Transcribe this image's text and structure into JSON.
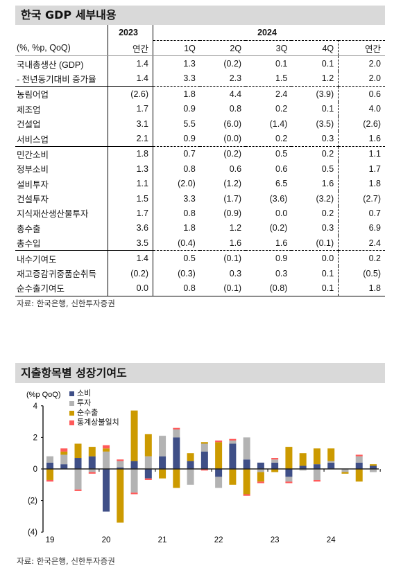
{
  "table_section": {
    "title": "한국 GDP 세부내용",
    "header": {
      "year_2023": "2023",
      "year_2024": "2024"
    },
    "units_row": [
      "(%, %p, QoQ)",
      "연간",
      "1Q",
      "2Q",
      "3Q",
      "4Q",
      "연간"
    ],
    "rows": [
      [
        "국내총생산 (GDP)",
        "1.4",
        "1.3",
        "(0.2)",
        "0.1",
        "0.1",
        "2.0"
      ],
      [
        "- 전년동기대비 증가율",
        "1.4",
        "3.3",
        "2.3",
        "1.5",
        "1.2",
        "2.0"
      ],
      [
        "농림어업",
        "(2.6)",
        "1.8",
        "4.4",
        "2.4",
        "(3.9)",
        "0.6"
      ],
      [
        "제조업",
        "1.7",
        "0.9",
        "0.8",
        "0.2",
        "0.1",
        "4.0"
      ],
      [
        "건설업",
        "3.1",
        "5.5",
        "(6.0)",
        "(1.4)",
        "(3.5)",
        "(2.6)"
      ],
      [
        "서비스업",
        "2.1",
        "0.9",
        "(0.0)",
        "0.2",
        "0.3",
        "1.6"
      ],
      [
        "민간소비",
        "1.8",
        "0.7",
        "(0.2)",
        "0.5",
        "0.2",
        "1.1"
      ],
      [
        "정부소비",
        "1.3",
        "0.8",
        "0.6",
        "0.6",
        "0.5",
        "1.7"
      ],
      [
        "설비투자",
        "1.1",
        "(2.0)",
        "(1.2)",
        "6.5",
        "1.6",
        "1.8"
      ],
      [
        "건설투자",
        "1.5",
        "3.3",
        "(1.7)",
        "(3.6)",
        "(3.2)",
        "(2.7)"
      ],
      [
        "지식재산생산물투자",
        "1.7",
        "0.8",
        "(0.9)",
        "0.0",
        "0.2",
        "0.7"
      ],
      [
        "총수출",
        "3.6",
        "1.8",
        "1.2",
        "(0.2)",
        "0.3",
        "6.9"
      ],
      [
        "총수입",
        "3.5",
        "(0.4)",
        "1.6",
        "1.6",
        "(0.1)",
        "2.4"
      ],
      [
        "내수기여도",
        "1.4",
        "0.5",
        "(0.1)",
        "0.9",
        "0.0",
        "0.2"
      ],
      [
        "재고증감귀중품순취득",
        "(0.2)",
        "(0.3)",
        "0.3",
        "0.3",
        "0.1",
        "(0.5)"
      ],
      [
        "순수출기여도",
        "0.0",
        "0.8",
        "(0.1)",
        "(0.8)",
        "0.1",
        "1.8"
      ]
    ],
    "source": "자료: 한국은행, 신한투자증권"
  },
  "chart_section": {
    "title": "지출항목별 성장기여도",
    "source": "자료: 한국은행, 신한투자증권"
  },
  "chart_data": {
    "type": "bar",
    "stacked": true,
    "ylabel": "(%p QoQ)",
    "ylim": [
      -4,
      4
    ],
    "yticks": [
      4,
      2,
      0,
      -2,
      -4
    ],
    "ytick_labels": [
      "4",
      "2",
      "0",
      "(2)",
      "(4)"
    ],
    "x_labels": [
      "19",
      "20",
      "21",
      "22",
      "23",
      "24"
    ],
    "categories": [
      "19Q1",
      "19Q2",
      "19Q3",
      "19Q4",
      "20Q1",
      "20Q2",
      "20Q3",
      "20Q4",
      "21Q1",
      "21Q2",
      "21Q3",
      "21Q4",
      "22Q1",
      "22Q2",
      "22Q3",
      "22Q4",
      "23Q1",
      "23Q2",
      "23Q3",
      "23Q4",
      "24Q1",
      "24Q2",
      "24Q3",
      "24Q4"
    ],
    "legend_position": "top-left",
    "series": [
      {
        "name": "소비",
        "color": "#3f4f87",
        "values": [
          0.4,
          0.3,
          0.7,
          0.8,
          -2.7,
          0.1,
          0.5,
          -0.6,
          0.8,
          2.0,
          0.5,
          1.1,
          -0.5,
          1.6,
          0.6,
          0.4,
          0.4,
          -0.5,
          0.2,
          0.3,
          0.4,
          0.0,
          0.4,
          0.2
        ]
      },
      {
        "name": "투자",
        "color": "#b3b3b3",
        "values": [
          0.4,
          0.6,
          -1.3,
          -0.2,
          1.1,
          0.4,
          -1.5,
          0.8,
          1.3,
          0.5,
          -1.0,
          0.5,
          -0.7,
          0.2,
          1.4,
          -0.2,
          0.2,
          -0.3,
          -0.1,
          -0.7,
          0.1,
          -0.2,
          0.4,
          -0.2
        ]
      },
      {
        "name": "순수출",
        "color": "#cc9a00",
        "values": [
          -0.7,
          0.2,
          0.9,
          0.6,
          0.2,
          -3.4,
          3.2,
          1.4,
          -0.6,
          -1.2,
          0.5,
          0.1,
          1.7,
          -1.0,
          -1.6,
          -0.6,
          -0.2,
          1.4,
          0.8,
          1.0,
          0.8,
          -0.1,
          -0.8,
          0.1
        ]
      },
      {
        "name": "통계상불일치",
        "color": "#ff5a5a",
        "values": [
          -0.1,
          0.2,
          -0.1,
          -0.1,
          0.2,
          0.1,
          -0.1,
          -0.1,
          0.0,
          0.1,
          0.0,
          -0.1,
          0.1,
          0.1,
          -0.1,
          -0.1,
          0.1,
          -0.1,
          0.0,
          -0.1,
          0.0,
          0.0,
          0.1,
          0.0
        ]
      }
    ]
  }
}
